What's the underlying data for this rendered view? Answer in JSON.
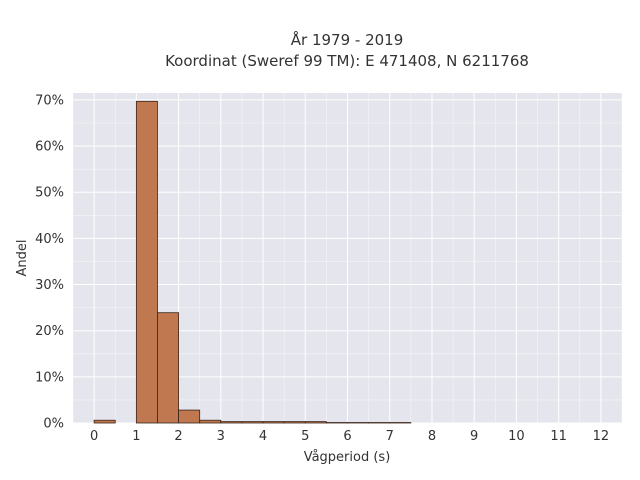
{
  "chart_data": {
    "type": "bar",
    "title": "År 1979 - 2019",
    "subtitle": "Koordinat (Sweref 99 TM): E 471408, N 6211768",
    "xlabel": "Vågperiod (s)",
    "ylabel": "Andel",
    "xlim": [
      -0.5,
      12.5
    ],
    "ylim": [
      0,
      71.5
    ],
    "x_ticks": [
      0,
      1,
      2,
      3,
      4,
      5,
      6,
      7,
      8,
      9,
      10,
      11,
      12
    ],
    "x_tick_labels": [
      "0",
      "1",
      "2",
      "3",
      "4",
      "5",
      "6",
      "7",
      "8",
      "9",
      "10",
      "11",
      "12"
    ],
    "y_ticks": [
      0,
      10,
      20,
      30,
      40,
      50,
      60,
      70
    ],
    "y_tick_labels": [
      "0%",
      "10%",
      "20%",
      "30%",
      "40%",
      "50%",
      "60%",
      "70%"
    ],
    "bin_width": 0.5,
    "bins": [
      {
        "x0": 0.0,
        "value": 0.6
      },
      {
        "x0": 1.0,
        "value": 69.7
      },
      {
        "x0": 1.5,
        "value": 23.9
      },
      {
        "x0": 2.0,
        "value": 2.8
      },
      {
        "x0": 2.5,
        "value": 0.6
      },
      {
        "x0": 3.0,
        "value": 0.3
      },
      {
        "x0": 3.5,
        "value": 0.3
      },
      {
        "x0": 4.0,
        "value": 0.3
      },
      {
        "x0": 4.5,
        "value": 0.3
      },
      {
        "x0": 5.0,
        "value": 0.3
      },
      {
        "x0": 5.5,
        "value": 0.1
      },
      {
        "x0": 6.0,
        "value": 0.1
      },
      {
        "x0": 6.5,
        "value": 0.1
      },
      {
        "x0": 7.0,
        "value": 0.1
      }
    ],
    "grid": true,
    "bar_color": "#c07850",
    "bar_edge_color": "#3a2418",
    "plot_background": "#e5e5ee"
  }
}
